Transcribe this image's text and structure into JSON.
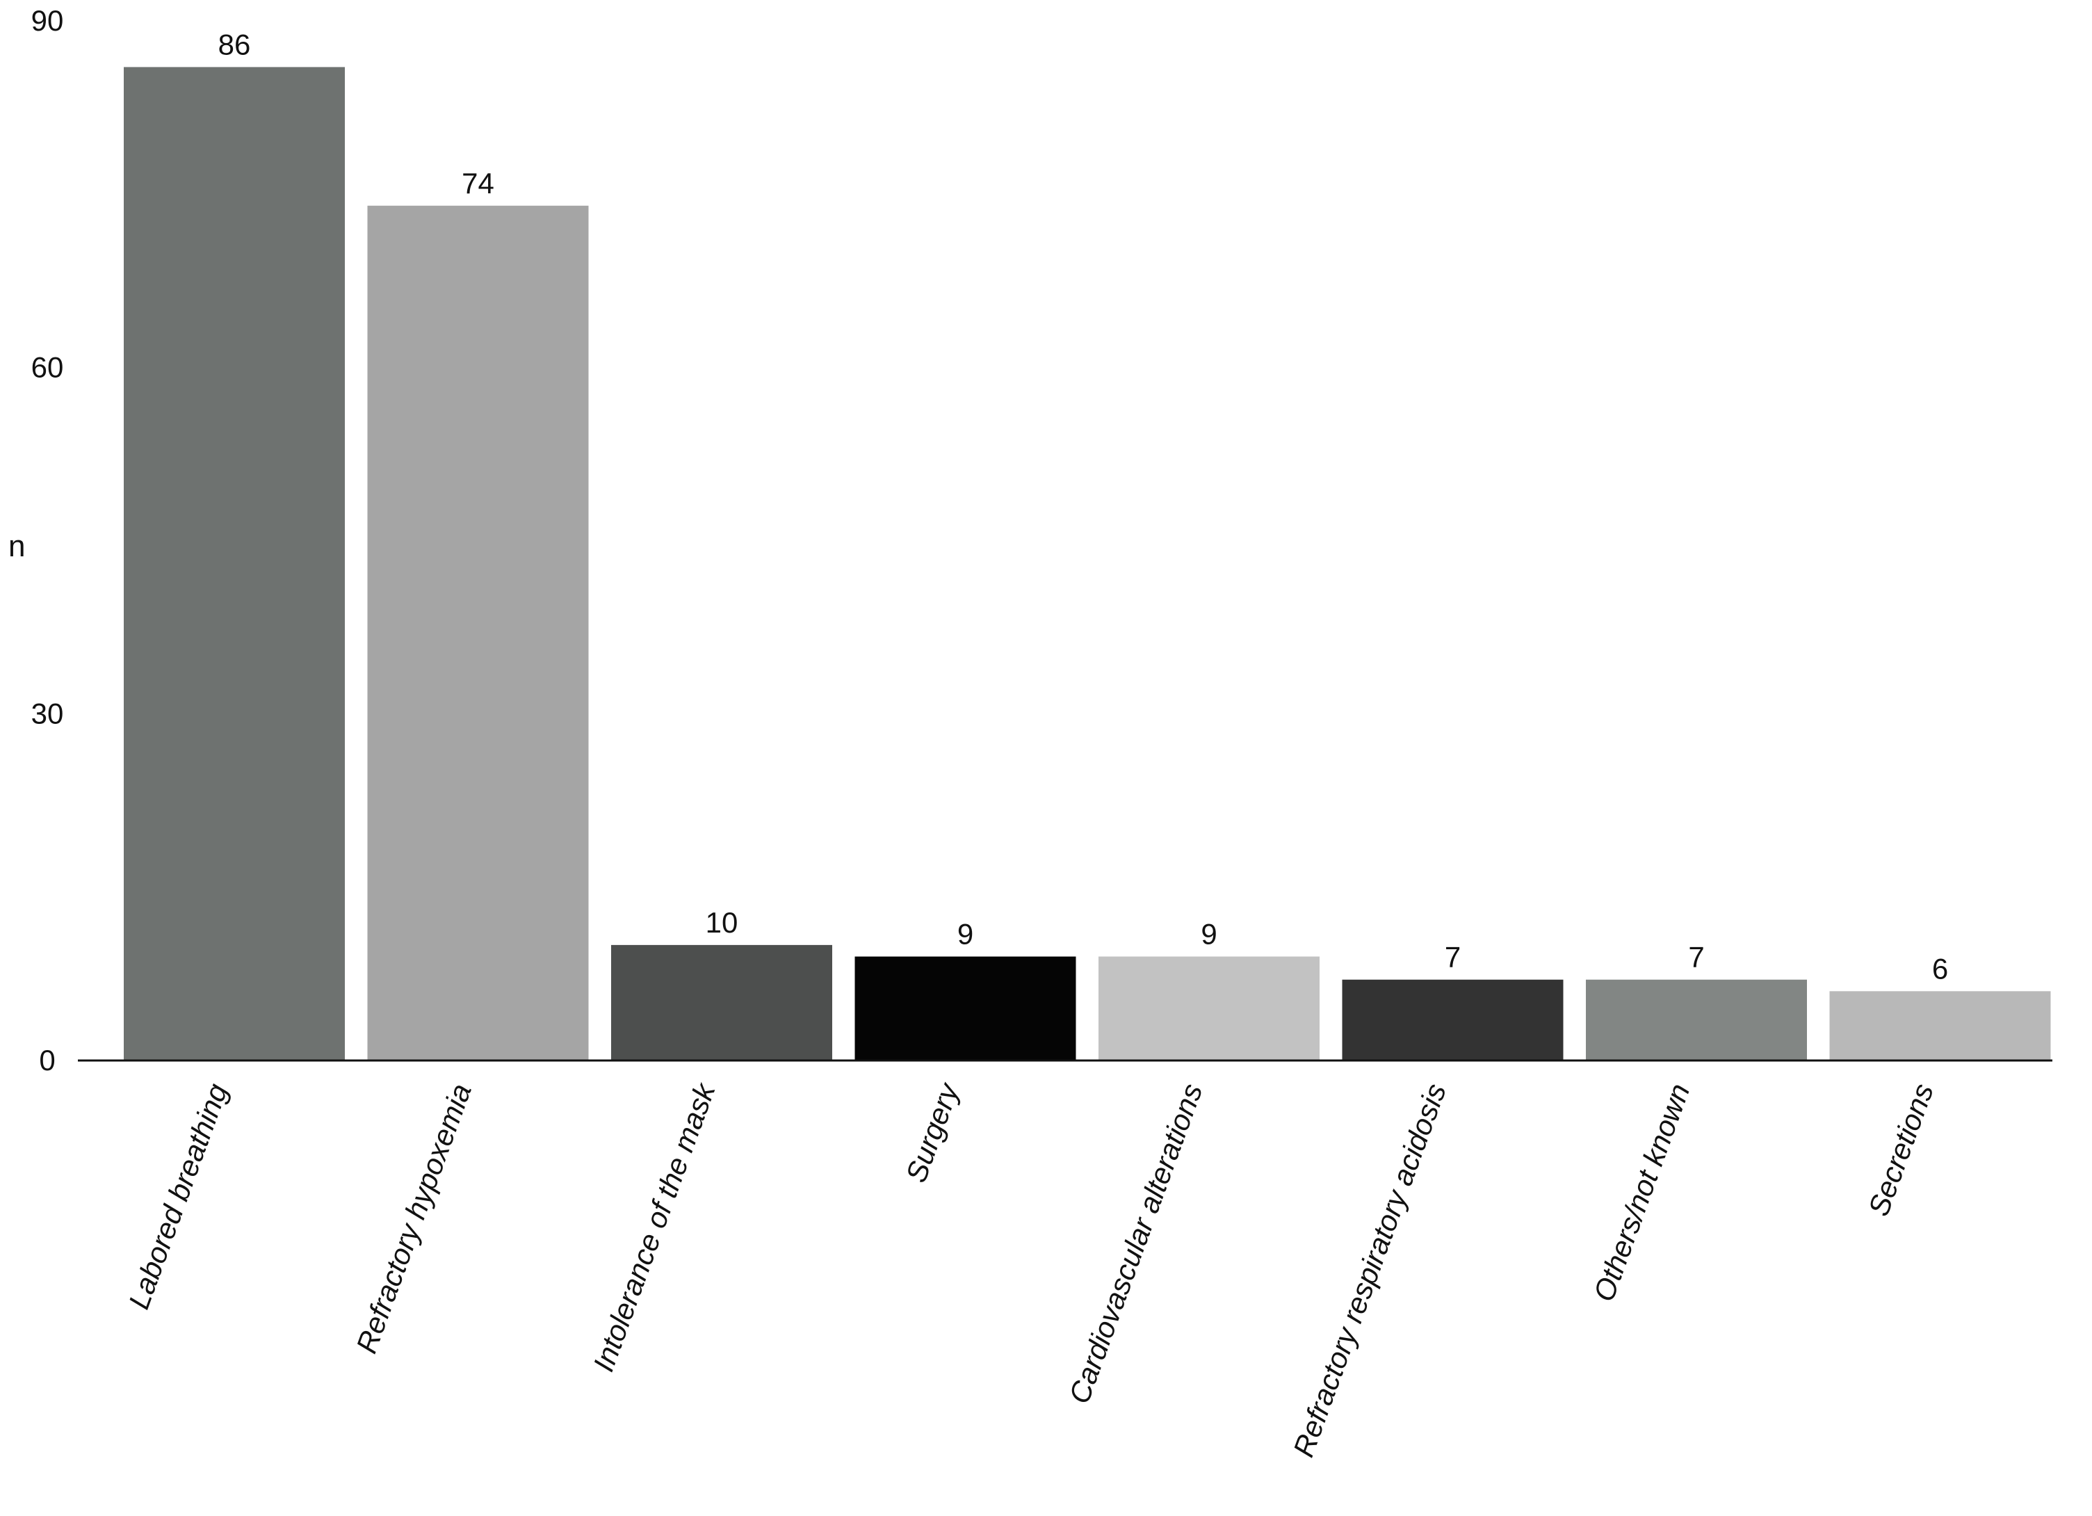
{
  "chart_data": {
    "type": "bar",
    "title": "",
    "xlabel": "",
    "ylabel": "n",
    "ylim": [
      0,
      90
    ],
    "yticks": [
      0,
      30,
      60,
      90
    ],
    "grid": false,
    "categories": [
      "Labored breathing",
      "Refractory hypoxemia",
      "Intolerance of the mask",
      "Surgery",
      "Cardiovascular alterations",
      "Refractory respiratory acidosis",
      "Others/not known",
      "Secretions"
    ],
    "values": [
      86,
      74,
      10,
      9,
      9,
      7,
      7,
      6
    ],
    "data_labels": [
      "86",
      "74",
      "10",
      "9",
      "9",
      "7",
      "7",
      "6"
    ],
    "colors": [
      "#6e7270",
      "#a5a5a5",
      "#4d4f4e",
      "#050505",
      "#c2c2c2",
      "#333333",
      "#828684",
      "#b8b8b8"
    ]
  }
}
